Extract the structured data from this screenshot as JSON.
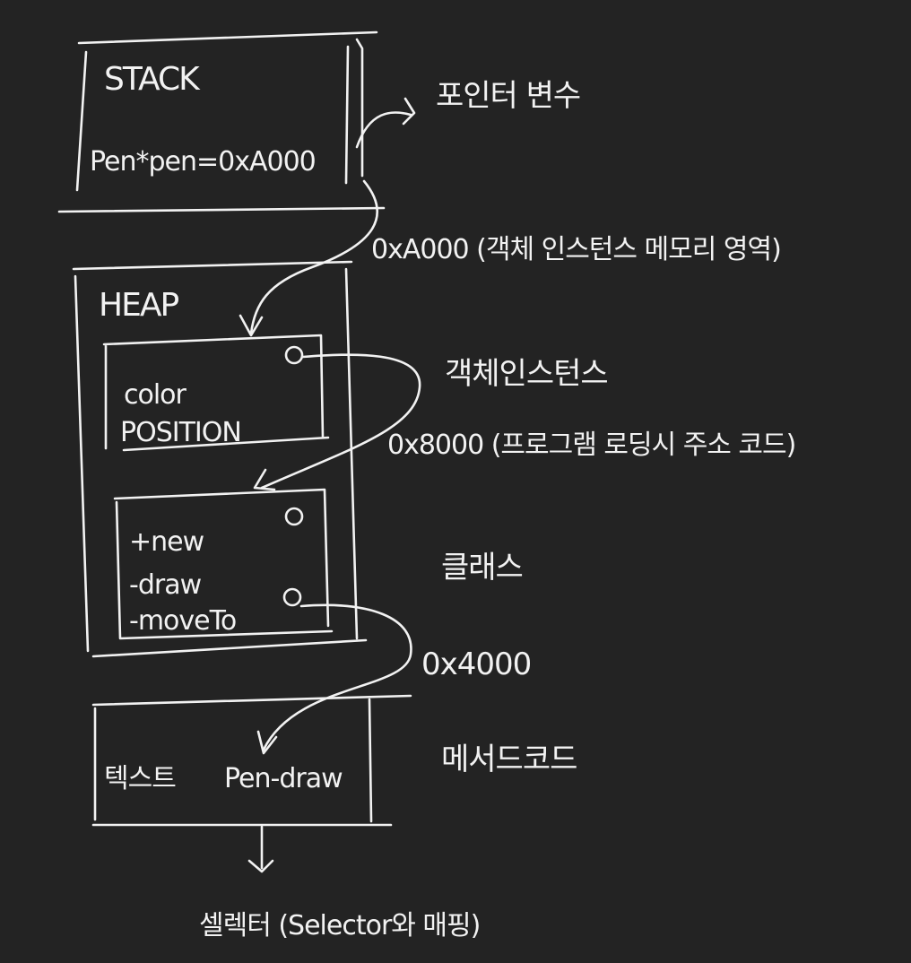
{
  "stack": {
    "title": "STACK",
    "content": "Pen*pen=0xA000"
  },
  "heap": {
    "title": "HEAP",
    "instance_fields": [
      "color",
      "POSITION"
    ],
    "class_methods": [
      "+new",
      "-draw",
      "-moveTo"
    ]
  },
  "text_segment": {
    "label": "텍스트",
    "content": "Pen-draw"
  },
  "notes": {
    "pointer_variable": "포인터 변수",
    "instance_address": "0xA000 (객체 인스턴스 메모리 영역)",
    "object_instance": "객체인스턴스",
    "class_address": "0x8000 (프로그램 로딩시 주소 코드)",
    "class": "클래스",
    "method_address": "0x4000",
    "method_code": "메서드코드",
    "selector": "셀렉터 (Selector와 매핑)"
  },
  "colors": {
    "background": "#232323",
    "ink": "#f2f2f2"
  }
}
